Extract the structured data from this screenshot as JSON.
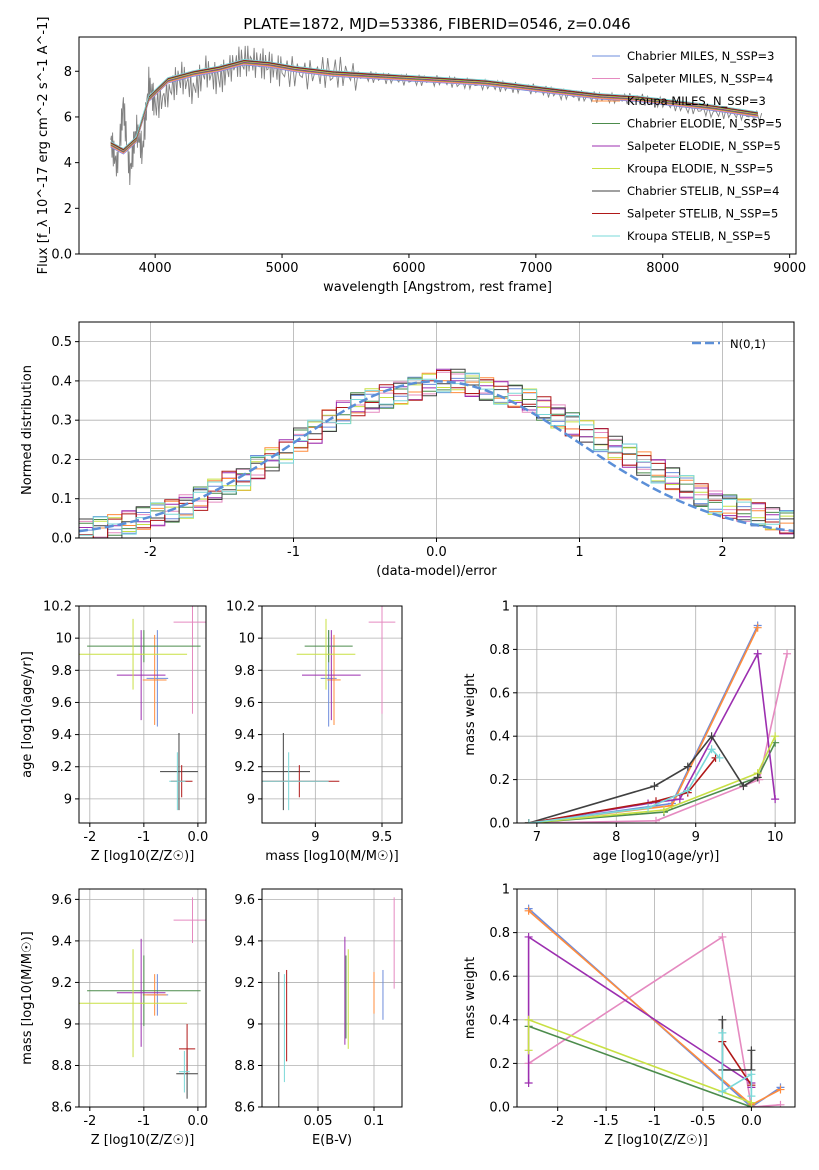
{
  "figure_title": "PLATE=1872, MJD=53386, FIBERID=0546, z=0.046",
  "chart_data": [
    {
      "type": "line",
      "panel": "spectrum",
      "xlabel": "wavelength [Angstrom, rest frame]",
      "ylabel": "Flux [f_λ 10^-17 erg cm^-2 s^-1 A^-1]",
      "xlim": [
        3400,
        9050
      ],
      "ylim": [
        0,
        9.5
      ],
      "xticks": [
        4000,
        5000,
        6000,
        7000,
        8000,
        9000
      ],
      "yticks": [
        0,
        2,
        4,
        6,
        8
      ],
      "grid": false,
      "legend_position": "top-right",
      "data_series": {
        "name": "data",
        "color": "#808080",
        "x": [
          3650,
          3700,
          3750,
          3800,
          3850,
          3900,
          3950,
          4000,
          4100,
          4200,
          4300,
          4400,
          4500,
          4600,
          4700,
          4800,
          4900,
          5000,
          5200,
          5400,
          5600,
          5800,
          6000,
          6200,
          6400,
          6600,
          6800,
          7000,
          7200,
          7400,
          7600,
          7800,
          8000,
          8200,
          8400,
          8600,
          8800
        ],
        "y": [
          5.0,
          3.8,
          6.5,
          3.5,
          5.5,
          4.5,
          7.5,
          6.5,
          7.0,
          7.8,
          7.2,
          8.0,
          7.6,
          8.2,
          8.5,
          8.4,
          8.2,
          8.0,
          7.9,
          8.0,
          7.8,
          7.7,
          7.6,
          7.6,
          7.5,
          7.4,
          7.3,
          7.2,
          7.0,
          6.9,
          6.8,
          6.8,
          6.6,
          6.4,
          6.2,
          6.1,
          6.0
        ]
      },
      "series": [
        {
          "name": "Chabrier MILES, N_SSP=3",
          "color": "#6e8cdc"
        },
        {
          "name": "Salpeter MILES, N_SSP=4",
          "color": "#e58ac0"
        },
        {
          "name": "Kroupa MILES, N_SSP=3",
          "color": "#ff8c3c"
        },
        {
          "name": "Chabrier ELODIE, N_SSP=5",
          "color": "#4c8c4c"
        },
        {
          "name": "Salpeter ELODIE, N_SSP=5",
          "color": "#9c2fb0"
        },
        {
          "name": "Kroupa ELODIE, N_SSP=5",
          "color": "#c8e044"
        },
        {
          "name": "Chabrier STELIB, N_SSP=4",
          "color": "#404040"
        },
        {
          "name": "Salpeter STELIB, N_SSP=5",
          "color": "#b01818"
        },
        {
          "name": "Kroupa STELIB, N_SSP=5",
          "color": "#7ad8d8"
        }
      ],
      "model_continuum": {
        "x": [
          3650,
          3750,
          3850,
          3950,
          4100,
          4300,
          4500,
          4700,
          4900,
          5100,
          5400,
          5700,
          6000,
          6300,
          6600,
          6900,
          7200,
          7500,
          7800,
          8100,
          8400,
          8750
        ],
        "y": [
          4.8,
          4.5,
          5.0,
          6.8,
          7.6,
          7.9,
          8.1,
          8.4,
          8.3,
          8.1,
          7.9,
          7.8,
          7.7,
          7.6,
          7.5,
          7.3,
          7.1,
          6.9,
          6.8,
          6.6,
          6.4,
          6.1
        ]
      }
    },
    {
      "type": "line",
      "panel": "residual-histogram",
      "xlabel": "(data-model)/error",
      "ylabel": "Normed distribution",
      "xlim": [
        -2.5,
        2.5
      ],
      "ylim": [
        0,
        0.55
      ],
      "xticks": [
        -2,
        -1,
        0,
        1,
        2
      ],
      "yticks": [
        0.0,
        0.1,
        0.2,
        0.3,
        0.4,
        0.5
      ],
      "grid": true,
      "legend_position": "top-right",
      "normal_label": "N(0,1)",
      "normal_color": "#5b8fd8",
      "bin_width": 0.1,
      "hist_base": [
        0.02,
        0.025,
        0.03,
        0.04,
        0.05,
        0.06,
        0.07,
        0.08,
        0.1,
        0.12,
        0.14,
        0.15,
        0.18,
        0.2,
        0.22,
        0.25,
        0.27,
        0.3,
        0.32,
        0.34,
        0.35,
        0.36,
        0.37,
        0.38,
        0.39,
        0.4,
        0.4,
        0.39,
        0.38,
        0.37,
        0.36,
        0.35,
        0.33,
        0.31,
        0.29,
        0.27,
        0.25,
        0.23,
        0.21,
        0.19,
        0.17,
        0.15,
        0.13,
        0.11,
        0.09,
        0.08,
        0.07,
        0.06,
        0.05,
        0.04
      ]
    },
    {
      "type": "scatter",
      "panel": "age-vs-Z",
      "xlabel": "Z [log10(Z/Z☉)]",
      "ylabel": "age [log10(age/yr)]",
      "xlim": [
        -2.2,
        0.15
      ],
      "ylim": [
        8.85,
        10.2
      ],
      "xticks": [
        -2,
        -1,
        0
      ],
      "yticks": [
        9.0,
        9.2,
        9.4,
        9.6,
        9.8,
        10.0,
        10.2
      ],
      "grid": true,
      "points": [
        {
          "series": "Chabrier MILES",
          "x": -0.75,
          "xerr": 0.2,
          "y": 9.75,
          "yerr": 0.3
        },
        {
          "series": "Salpeter MILES",
          "x": -0.1,
          "xerr": 0.35,
          "y": 10.1,
          "yerr": 0.57
        },
        {
          "series": "Kroupa MILES",
          "x": -0.8,
          "xerr": 0.22,
          "y": 9.74,
          "yerr": 0.28
        },
        {
          "series": "Chabrier ELODIE",
          "x": -1.0,
          "xerr": 1.05,
          "y": 9.95,
          "yerr": 0.1
        },
        {
          "series": "Salpeter ELODIE",
          "x": -1.05,
          "xerr": 0.45,
          "y": 9.77,
          "yerr": 0.28
        },
        {
          "series": "Kroupa ELODIE",
          "x": -1.2,
          "xerr": 1.0,
          "y": 9.9,
          "yerr": 0.22
        },
        {
          "series": "Chabrier STELIB",
          "x": -0.35,
          "xerr": 0.35,
          "y": 9.17,
          "yerr": 0.24
        },
        {
          "series": "Salpeter STELIB",
          "x": -0.3,
          "xerr": 0.2,
          "y": 9.11,
          "yerr": 0.1
        },
        {
          "series": "Kroupa STELIB",
          "x": -0.38,
          "xerr": 0.15,
          "y": 9.11,
          "yerr": 0.18
        }
      ]
    },
    {
      "type": "scatter",
      "panel": "age-vs-mass",
      "xlabel": "mass [log10(M/M☉)]",
      "ylabel": "",
      "xlim": [
        8.6,
        9.65
      ],
      "ylim": [
        8.85,
        10.2
      ],
      "xticks": [
        9.0,
        9.5
      ],
      "yticks": [
        9.0,
        9.2,
        9.4,
        9.6,
        9.8,
        10.0,
        10.2
      ],
      "grid": true,
      "points": [
        {
          "series": "Chabrier MILES",
          "x": 9.1,
          "xerr": 0.06,
          "y": 9.75,
          "yerr": 0.3
        },
        {
          "series": "Salpeter MILES",
          "x": 9.5,
          "xerr": 0.1,
          "y": 10.1,
          "yerr": 0.57
        },
        {
          "series": "Kroupa MILES",
          "x": 9.14,
          "xerr": 0.05,
          "y": 9.74,
          "yerr": 0.28
        },
        {
          "series": "Chabrier ELODIE",
          "x": 9.1,
          "xerr": 0.18,
          "y": 9.95,
          "yerr": 0.1
        },
        {
          "series": "Salpeter ELODIE",
          "x": 9.12,
          "xerr": 0.22,
          "y": 9.77,
          "yerr": 0.28
        },
        {
          "series": "Kroupa ELODIE",
          "x": 9.08,
          "xerr": 0.22,
          "y": 9.9,
          "yerr": 0.22
        },
        {
          "series": "Chabrier STELIB",
          "x": 8.76,
          "xerr": 0.2,
          "y": 9.17,
          "yerr": 0.24
        },
        {
          "series": "Salpeter STELIB",
          "x": 8.88,
          "xerr": 0.3,
          "y": 9.11,
          "yerr": 0.1
        },
        {
          "series": "Kroupa STELIB",
          "x": 8.8,
          "xerr": 0.3,
          "y": 9.11,
          "yerr": 0.18
        }
      ]
    },
    {
      "type": "line",
      "panel": "mass-weight-vs-age",
      "xlabel": "age [log10(age/yr)]",
      "ylabel": "mass weight",
      "xlim": [
        6.75,
        10.25
      ],
      "ylim": [
        0,
        1.0
      ],
      "xticks": [
        7,
        8,
        9,
        10
      ],
      "yticks": [
        0.0,
        0.2,
        0.4,
        0.6,
        0.8,
        1.0
      ],
      "grid": true,
      "lines": [
        {
          "series": "Chabrier MILES",
          "x": [
            6.9,
            8.7,
            9.78
          ],
          "y": [
            0.0,
            0.09,
            0.91
          ]
        },
        {
          "series": "Salpeter MILES",
          "x": [
            6.9,
            8.5,
            9.8,
            10.15
          ],
          "y": [
            0.0,
            0.01,
            0.2,
            0.78
          ]
        },
        {
          "series": "Kroupa MILES",
          "x": [
            6.9,
            8.7,
            9.78
          ],
          "y": [
            0.0,
            0.08,
            0.9
          ]
        },
        {
          "series": "Chabrier ELODIE",
          "x": [
            6.9,
            8.6,
            9.78,
            10.0
          ],
          "y": [
            0.0,
            0.05,
            0.21,
            0.37
          ]
        },
        {
          "series": "Salpeter ELODIE",
          "x": [
            6.9,
            8.4,
            8.8,
            9.78,
            10.0
          ],
          "y": [
            0.0,
            0.09,
            0.11,
            0.78,
            0.11
          ]
        },
        {
          "series": "Kroupa ELODIE",
          "x": [
            6.9,
            8.6,
            9.78,
            10.0
          ],
          "y": [
            0.0,
            0.06,
            0.23,
            0.4
          ]
        },
        {
          "series": "Chabrier STELIB",
          "x": [
            6.9,
            8.48,
            8.9,
            9.2,
            9.6,
            9.78
          ],
          "y": [
            0.0,
            0.17,
            0.26,
            0.4,
            0.17,
            0.21
          ]
        },
        {
          "series": "Salpeter STELIB",
          "x": [
            6.9,
            8.5,
            8.9,
            9.25
          ],
          "y": [
            0.0,
            0.1,
            0.14,
            0.3
          ]
        },
        {
          "series": "Kroupa STELIB",
          "x": [
            6.9,
            8.4,
            8.9,
            9.2,
            9.3
          ],
          "y": [
            0.0,
            0.07,
            0.15,
            0.34,
            0.3
          ]
        }
      ]
    },
    {
      "type": "scatter",
      "panel": "mass-vs-Z",
      "xlabel": "Z [log10(Z/Z☉)]",
      "ylabel": "mass [log10(M/M☉)]",
      "xlim": [
        -2.2,
        0.15
      ],
      "ylim": [
        8.6,
        9.65
      ],
      "xticks": [
        -2,
        -1,
        0
      ],
      "yticks": [
        8.6,
        8.8,
        9.0,
        9.2,
        9.4,
        9.6
      ],
      "grid": true,
      "points": [
        {
          "series": "Chabrier MILES",
          "x": -0.75,
          "xerr": 0.2,
          "y": 9.14,
          "yerr": 0.1
        },
        {
          "series": "Salpeter MILES",
          "x": -0.1,
          "xerr": 0.35,
          "y": 9.5,
          "yerr": 0.11
        },
        {
          "series": "Kroupa MILES",
          "x": -0.8,
          "xerr": 0.22,
          "y": 9.14,
          "yerr": 0.1
        },
        {
          "series": "Chabrier ELODIE",
          "x": -1.0,
          "xerr": 1.05,
          "y": 9.16,
          "yerr": 0.17
        },
        {
          "series": "Salpeter ELODIE",
          "x": -1.05,
          "xerr": 0.45,
          "y": 9.15,
          "yerr": 0.26
        },
        {
          "series": "Kroupa ELODIE",
          "x": -1.2,
          "xerr": 1.0,
          "y": 9.1,
          "yerr": 0.26
        },
        {
          "series": "Chabrier STELIB",
          "x": -0.2,
          "xerr": 0.2,
          "y": 8.76,
          "yerr": 0.12
        },
        {
          "series": "Salpeter STELIB",
          "x": -0.2,
          "xerr": 0.15,
          "y": 8.88,
          "yerr": 0.12
        },
        {
          "series": "Kroupa STELIB",
          "x": -0.25,
          "xerr": 0.1,
          "y": 8.77,
          "yerr": 0.1
        }
      ]
    },
    {
      "type": "scatter",
      "panel": "mass-vs-EBV",
      "xlabel": "E(B-V)",
      "ylabel": "",
      "xlim": [
        0.0,
        0.125
      ],
      "ylim": [
        8.6,
        9.65
      ],
      "xticks": [
        0.05,
        0.1
      ],
      "yticks": [
        8.6,
        8.8,
        9.0,
        9.2,
        9.4,
        9.6
      ],
      "grid": true,
      "points": [
        {
          "series": "Chabrier MILES",
          "x": 0.108,
          "y": 9.14,
          "yerr": 0.12
        },
        {
          "series": "Salpeter MILES",
          "x": 0.118,
          "y": 9.39,
          "yerr": 0.22
        },
        {
          "series": "Kroupa MILES",
          "x": 0.1,
          "y": 9.15,
          "yerr": 0.1
        },
        {
          "series": "Chabrier ELODIE",
          "x": 0.075,
          "y": 9.13,
          "yerr": 0.2
        },
        {
          "series": "Salpeter ELODIE",
          "x": 0.074,
          "y": 9.16,
          "yerr": 0.26
        },
        {
          "series": "Kroupa ELODIE",
          "x": 0.077,
          "y": 9.12,
          "yerr": 0.24
        },
        {
          "series": "Chabrier STELIB",
          "x": 0.015,
          "y": 8.92,
          "yerr": 0.33
        },
        {
          "series": "Salpeter STELIB",
          "x": 0.022,
          "y": 9.04,
          "yerr": 0.22
        },
        {
          "series": "Kroupa STELIB",
          "x": 0.02,
          "y": 8.98,
          "yerr": 0.26
        }
      ]
    },
    {
      "type": "line",
      "panel": "mass-weight-vs-Z",
      "xlabel": "Z [log10(Z/Z☉)]",
      "ylabel": "mass weight",
      "xlim": [
        -2.42,
        0.45
      ],
      "ylim": [
        0,
        1.0
      ],
      "xticks": [
        -2.0,
        -1.5,
        -1.0,
        -0.5,
        0.0
      ],
      "yticks": [
        0.0,
        0.2,
        0.4,
        0.6,
        0.8,
        1.0
      ],
      "grid": true,
      "lines": [
        {
          "series": "Chabrier MILES",
          "x": [
            -2.3,
            0.0,
            0.3
          ],
          "y": [
            0.91,
            0.0,
            0.09
          ]
        },
        {
          "series": "Salpeter MILES",
          "x": [
            -2.3,
            -0.3,
            0.0,
            0.3
          ],
          "y": [
            0.2,
            0.78,
            0.0,
            0.01
          ]
        },
        {
          "series": "Kroupa MILES",
          "x": [
            -2.3,
            0.0,
            0.3
          ],
          "y": [
            0.9,
            0.01,
            0.08
          ]
        },
        {
          "series": "Chabrier ELODIE",
          "x": [
            -2.3,
            0.0
          ],
          "y": [
            0.37,
            0.0
          ]
        },
        {
          "series": "Salpeter ELODIE",
          "x": [
            -2.3,
            -2.3,
            0.0,
            0.0
          ],
          "y": [
            0.11,
            0.78,
            0.11,
            0.09
          ]
        },
        {
          "series": "Kroupa ELODIE",
          "x": [
            -2.3,
            -2.3,
            0.0
          ],
          "y": [
            0.26,
            0.4,
            0.02
          ]
        },
        {
          "series": "Chabrier STELIB",
          "x": [
            -0.3,
            -0.3,
            0.0,
            0.0
          ],
          "y": [
            0.4,
            0.17,
            0.17,
            0.26
          ]
        },
        {
          "series": "Salpeter STELIB",
          "x": [
            -0.3,
            0.0
          ],
          "y": [
            0.3,
            0.1
          ]
        },
        {
          "series": "Kroupa STELIB",
          "x": [
            -0.3,
            -0.3,
            0.0,
            0.0
          ],
          "y": [
            0.34,
            0.07,
            0.15,
            0.05
          ]
        }
      ]
    }
  ]
}
